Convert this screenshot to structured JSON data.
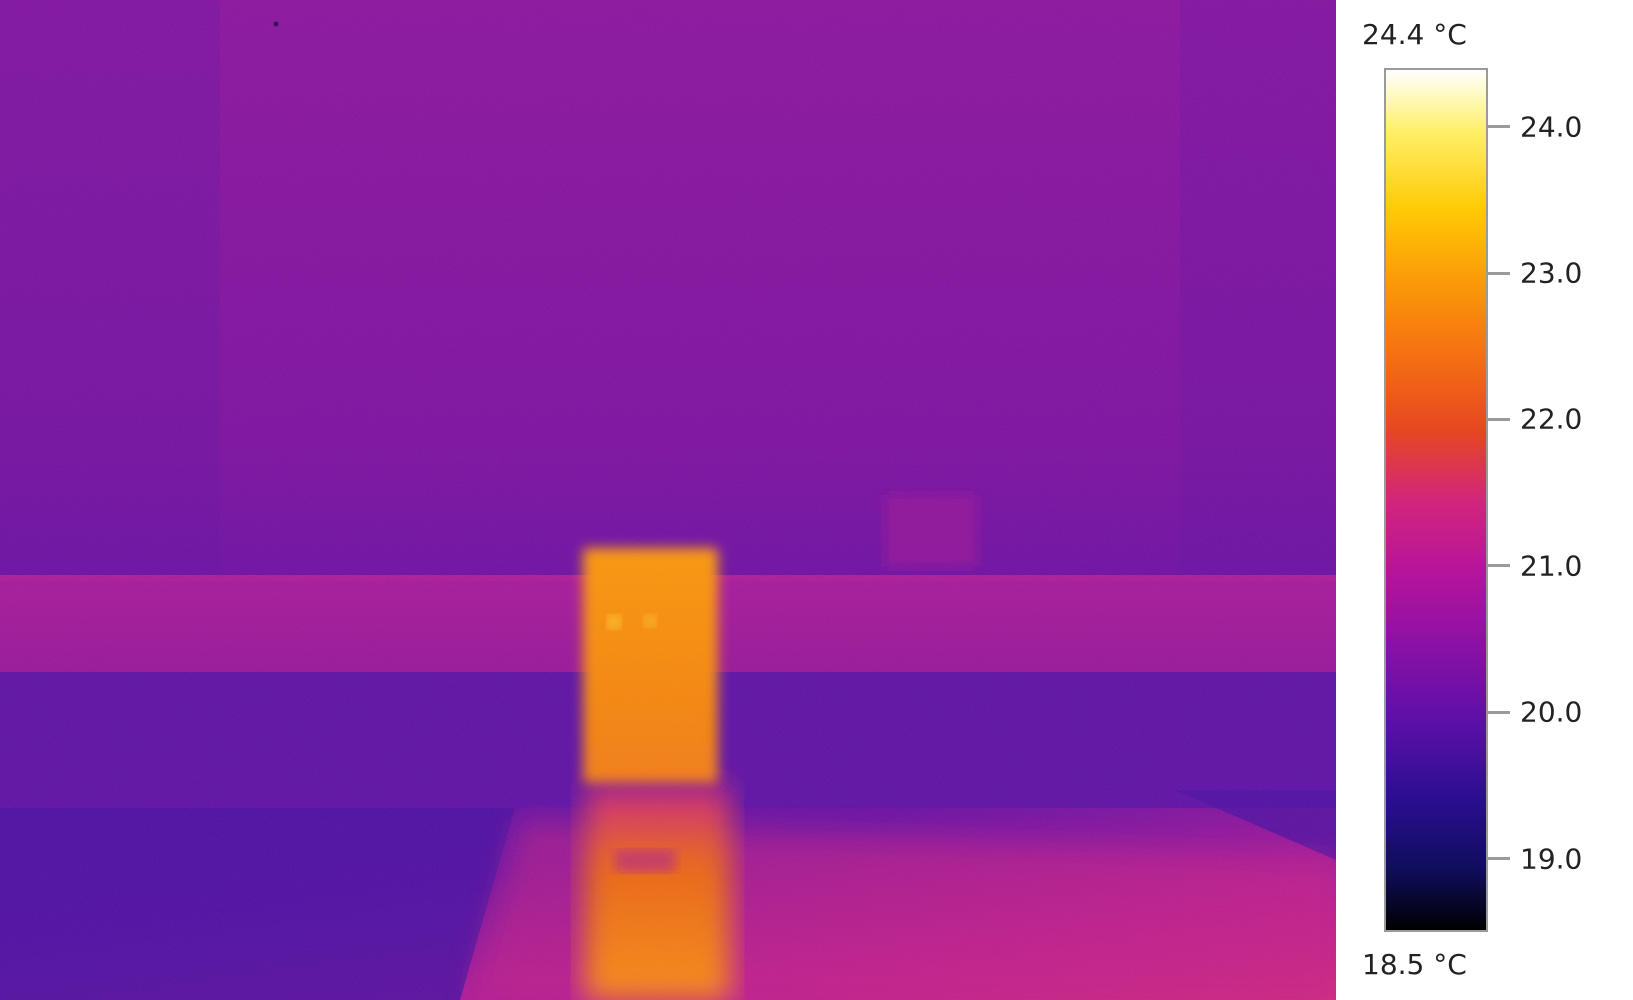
{
  "thermal_image": {
    "scene": "thermal-camera-view",
    "palette": "iron"
  },
  "scale": {
    "max": "24.4 °C",
    "min": "18.5 °C",
    "max_value": 24.4,
    "min_value": 18.5,
    "ticks": [
      {
        "label": "24.0",
        "value": 24.0
      },
      {
        "label": "23.0",
        "value": 23.0
      },
      {
        "label": "22.0",
        "value": 22.0
      },
      {
        "label": "21.0",
        "value": 21.0
      },
      {
        "label": "20.0",
        "value": 20.0
      },
      {
        "label": "19.0",
        "value": 19.0
      }
    ]
  },
  "colors": {
    "background_wall": "#7a10a0",
    "upper_wall": "#8c159f",
    "counter_band": "#a3179c",
    "lower_wall": "#5d12a4",
    "floor_dark": "#4c10a2",
    "floor_warm": "#c6258b",
    "reflection": "#ef7a12",
    "door": "#f98a10",
    "door_highlight": "#ffcc33",
    "border": "#9a9a9a",
    "text": "#222222"
  }
}
